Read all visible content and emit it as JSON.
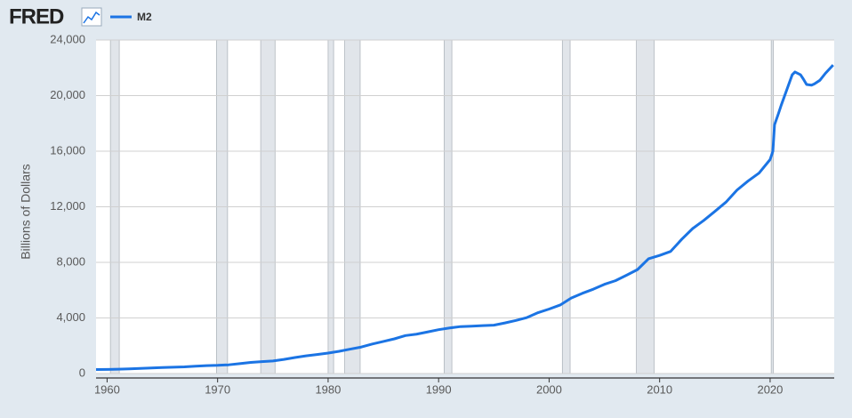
{
  "chart_data": {
    "type": "line",
    "source_logo": "FRED",
    "ylabel": "Billions of Dollars",
    "x": [
      1959,
      1960,
      1961,
      1962,
      1963,
      1964,
      1965,
      1966,
      1967,
      1968,
      1969,
      1970,
      1971,
      1972,
      1973,
      1974,
      1975,
      1976,
      1977,
      1978,
      1979,
      1980,
      1981,
      1982,
      1983,
      1984,
      1985,
      1986,
      1987,
      1988,
      1989,
      1990,
      1991,
      1992,
      1993,
      1994,
      1995,
      1996,
      1997,
      1998,
      1999,
      2000,
      2001,
      2002,
      2003,
      2004,
      2005,
      2006,
      2007,
      2008,
      2009,
      2010,
      2011,
      2012,
      2013,
      2014,
      2015,
      2016,
      2017,
      2018,
      2019,
      2020,
      2020.25,
      2020.4,
      2020.75,
      2021,
      2021.5,
      2022,
      2022.25,
      2022.75,
      2023,
      2023.3,
      2023.75,
      2024,
      2024.5,
      2025,
      2025.7
    ],
    "series": [
      {
        "name": "M2",
        "color": "#1b74e4",
        "values": [
          286,
          299,
          313,
          340,
          369,
          396,
          429,
          459,
          481,
          527,
          568,
          588,
          628,
          710,
          802,
          855,
          902,
          1016,
          1152,
          1270,
          1366,
          1474,
          1600,
          1756,
          1905,
          2124,
          2309,
          2496,
          2732,
          2831,
          2994,
          3156,
          3280,
          3380,
          3410,
          3450,
          3480,
          3640,
          3820,
          4030,
          4380,
          4640,
          4930,
          5430,
          5770,
          6070,
          6420,
          6680,
          7070,
          7480,
          8260,
          8500,
          8790,
          9660,
          10440,
          11020,
          11670,
          12330,
          13200,
          13850,
          14430,
          15400,
          16000,
          17900,
          18700,
          19300,
          20400,
          21500,
          21700,
          21500,
          21200,
          20800,
          20750,
          20840,
          21100,
          21600,
          22200
        ]
      }
    ],
    "recessions": [
      [
        1960.3,
        1961.1
      ],
      [
        1969.9,
        1970.9
      ],
      [
        1973.9,
        1975.2
      ],
      [
        1980.0,
        1980.5
      ],
      [
        1981.5,
        1982.9
      ],
      [
        1990.5,
        1991.2
      ],
      [
        2001.2,
        2001.9
      ],
      [
        2007.9,
        2009.5
      ],
      [
        2020.1,
        2020.3
      ]
    ],
    "recession_color": "#e1e5ea",
    "xlim": [
      1959,
      2025.8
    ],
    "xticks": [
      1960,
      1970,
      1980,
      1990,
      2000,
      2010,
      2020
    ],
    "ylim": [
      0,
      24000
    ],
    "yticks": [
      0,
      {
        "value": 4000,
        "label": "4,000"
      },
      {
        "value": 8000,
        "label": "8,000"
      },
      {
        "value": 12000,
        "label": "12,000"
      },
      {
        "value": 16000,
        "label": "16,000"
      },
      {
        "value": 20000,
        "label": "20,000"
      },
      {
        "value": 24000,
        "label": "24,000"
      }
    ],
    "grid": true
  }
}
